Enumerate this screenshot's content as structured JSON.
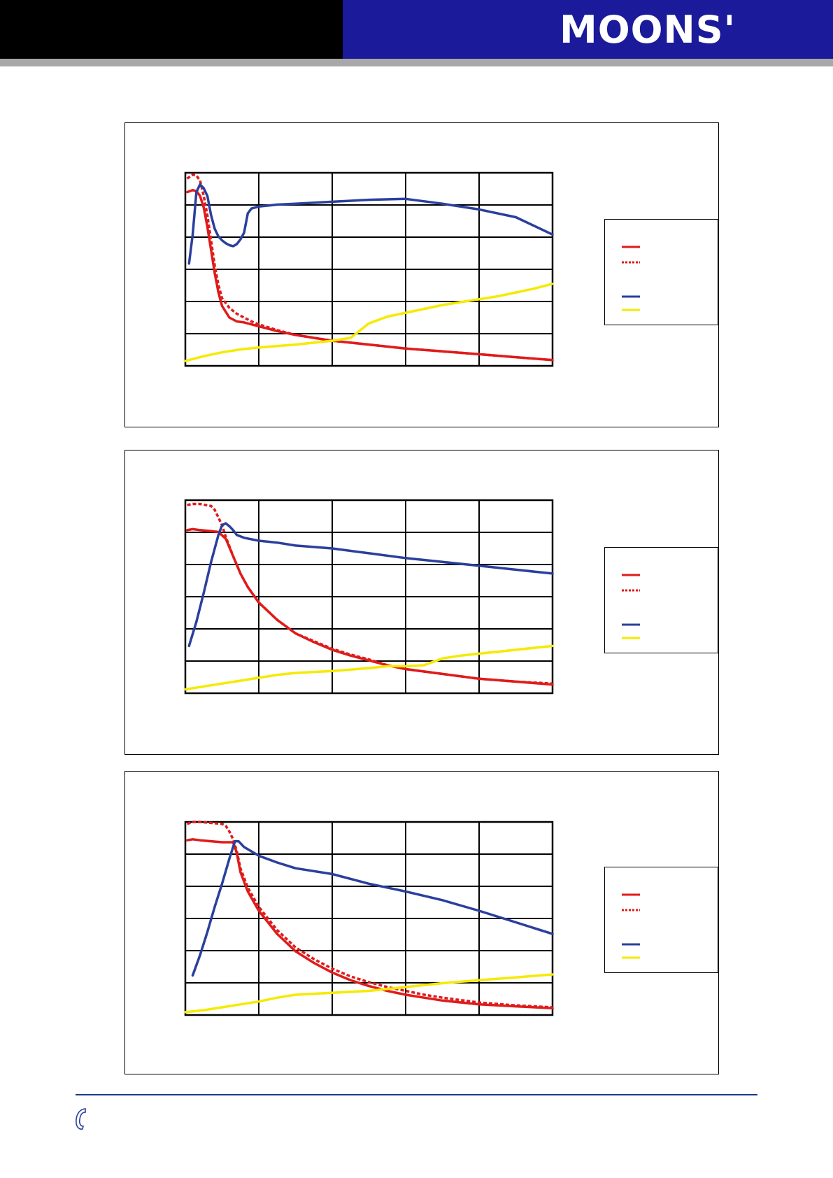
{
  "header": {
    "logo_text": "MOONS'",
    "colors": {
      "black_bar": "#000000",
      "blue_bar": "#1a1a9a",
      "gray_rule": "#a8a8a8"
    }
  },
  "legend_swatches": [
    {
      "color": "#e01b1b",
      "style": "solid"
    },
    {
      "color": "#e01b1b",
      "style": "dashed"
    },
    {
      "color": "#2b3f9c",
      "style": "solid"
    },
    {
      "color": "#f5ea00",
      "style": "solid"
    }
  ],
  "chart_data": [
    {
      "type": "line",
      "grid": true,
      "xlim": [
        0,
        100
      ],
      "ylim": [
        0,
        100
      ],
      "x_divisions": 5,
      "y_divisions": 6,
      "series": [
        {
          "color": "#e01b1b",
          "style": "solid",
          "x": [
            0.5,
            2,
            3,
            4,
            5,
            6,
            7,
            8,
            9,
            10,
            12,
            14,
            16,
            20,
            25,
            30,
            40,
            50,
            60,
            70,
            80,
            90,
            100
          ],
          "y": [
            90,
            91,
            90.5,
            88,
            82,
            72,
            60,
            48,
            38,
            31,
            25,
            23,
            22.5,
            20.5,
            18,
            16,
            13,
            11,
            9,
            7.5,
            6,
            4.5,
            3
          ]
        },
        {
          "color": "#e01b1b",
          "style": "dashed",
          "x": [
            0.5,
            2,
            3,
            4,
            5,
            6,
            7,
            8,
            9,
            10,
            12,
            14,
            16,
            18,
            20,
            25,
            30,
            40,
            50,
            60,
            70,
            80,
            90,
            100
          ],
          "y": [
            97,
            99,
            98.5,
            96,
            88,
            78,
            65,
            52,
            42,
            35,
            30,
            27,
            25,
            23,
            21.5,
            18.5,
            16,
            13,
            11,
            9,
            7.5,
            6,
            4.5,
            3
          ]
        },
        {
          "color": "#2b3f9c",
          "style": "solid",
          "x": [
            1,
            2,
            3,
            4,
            5,
            6,
            7,
            8,
            9,
            10,
            11,
            12,
            13,
            14,
            15,
            16,
            17,
            18,
            20,
            25,
            30,
            40,
            50,
            60,
            70,
            80,
            90,
            100
          ],
          "y": [
            53,
            68,
            90,
            94,
            92,
            88,
            78,
            71,
            67,
            65,
            63.5,
            62.5,
            62,
            63,
            65.5,
            69,
            79,
            81.5,
            82.5,
            83.5,
            84,
            85,
            86,
            86.5,
            84,
            81,
            77,
            68
          ]
        },
        {
          "color": "#f5ea00",
          "style": "solid",
          "x": [
            0,
            5,
            10,
            15,
            20,
            30,
            35,
            40,
            45,
            50,
            55,
            60,
            65,
            70,
            75,
            80,
            85,
            90,
            95,
            100
          ],
          "y": [
            2.5,
            5,
            7,
            8.5,
            9.5,
            11,
            12,
            13,
            14.5,
            22,
            25.5,
            27.5,
            29.5,
            31.5,
            33,
            34.5,
            36,
            38,
            40,
            42.5
          ]
        }
      ]
    },
    {
      "type": "line",
      "grid": true,
      "xlim": [
        0,
        100
      ],
      "ylim": [
        0,
        100
      ],
      "x_divisions": 5,
      "y_divisions": 6,
      "series": [
        {
          "color": "#e01b1b",
          "style": "solid",
          "x": [
            0.5,
            2,
            4,
            7,
            9,
            11,
            13,
            15,
            17,
            20,
            25,
            30,
            35,
            40,
            45,
            50,
            55,
            60,
            70,
            80,
            90,
            100
          ],
          "y": [
            84.5,
            85,
            84.5,
            84,
            83.5,
            80,
            71,
            62,
            55,
            47,
            38,
            31,
            26.5,
            22.5,
            19.5,
            17,
            14.5,
            12.5,
            10,
            7.5,
            6,
            4.5
          ]
        },
        {
          "color": "#e01b1b",
          "style": "dashed",
          "x": [
            0.5,
            2,
            4,
            7,
            8,
            9,
            10,
            11,
            13,
            15,
            17,
            20,
            25,
            30,
            35,
            40,
            45,
            50,
            55,
            60,
            70,
            80,
            90,
            100
          ],
          "y": [
            97.5,
            98,
            98,
            97,
            95,
            91,
            87,
            81,
            71,
            62,
            55,
            47,
            38,
            31,
            27,
            23,
            20,
            17.5,
            14.5,
            12.5,
            10,
            7.5,
            6,
            5
          ]
        },
        {
          "color": "#2b3f9c",
          "style": "solid",
          "x": [
            1,
            3,
            5,
            7,
            9,
            10,
            11,
            12,
            13,
            14,
            16,
            20,
            25,
            30,
            40,
            50,
            60,
            70,
            80,
            90,
            100
          ],
          "y": [
            24.5,
            37,
            52,
            68,
            82,
            87,
            88,
            86.5,
            84.5,
            82,
            80.5,
            79,
            78,
            76.5,
            75,
            72.5,
            70,
            68,
            66,
            64,
            62
          ]
        },
        {
          "color": "#f5ea00",
          "style": "solid",
          "x": [
            0,
            5,
            10,
            15,
            20,
            25,
            30,
            40,
            50,
            55,
            60,
            65,
            70,
            75,
            80,
            85,
            90,
            95,
            100
          ],
          "y": [
            2,
            3.5,
            5,
            6.5,
            8,
            9.5,
            10.5,
            11.5,
            13,
            14,
            14,
            14.5,
            18,
            19.5,
            20.5,
            21.5,
            22.5,
            23.5,
            24.5
          ]
        }
      ]
    },
    {
      "type": "line",
      "grid": true,
      "xlim": [
        0,
        100
      ],
      "ylim": [
        0,
        100
      ],
      "x_divisions": 5,
      "y_divisions": 6,
      "series": [
        {
          "color": "#e01b1b",
          "style": "solid",
          "x": [
            0.5,
            2,
            4,
            7,
            10,
            13,
            14,
            15,
            17,
            20,
            25,
            30,
            35,
            40,
            45,
            50,
            55,
            60,
            65,
            70,
            80,
            90,
            100
          ],
          "y": [
            90.5,
            91,
            90.5,
            90,
            89.5,
            89.5,
            84,
            74,
            64,
            54,
            42,
            33,
            27,
            22,
            18,
            15,
            12.5,
            10.5,
            9,
            7.5,
            5.5,
            4.5,
            3.5
          ]
        },
        {
          "color": "#e01b1b",
          "style": "dashed",
          "x": [
            0.5,
            2,
            4,
            7,
            10,
            11,
            12,
            13,
            14,
            15,
            17,
            20,
            25,
            30,
            35,
            40,
            45,
            50,
            55,
            60,
            65,
            70,
            80,
            90,
            100
          ],
          "y": [
            99,
            100,
            100,
            99.5,
            99,
            98,
            95,
            91,
            85,
            76,
            66,
            56,
            44,
            35,
            29,
            24,
            20,
            17,
            14.5,
            12.5,
            10.5,
            9,
            6.5,
            5,
            4
          ]
        },
        {
          "color": "#2b3f9c",
          "style": "solid",
          "x": [
            2,
            4,
            6,
            8,
            10,
            12,
            13.5,
            14.5,
            16,
            20,
            25,
            30,
            40,
            50,
            60,
            70,
            80,
            90,
            100
          ],
          "y": [
            20.5,
            31,
            43,
            56,
            68,
            81,
            90,
            90,
            87,
            82.5,
            79,
            76,
            73,
            68,
            64,
            59.5,
            54,
            48,
            42
          ]
        },
        {
          "color": "#f5ea00",
          "style": "solid",
          "x": [
            0,
            5,
            10,
            15,
            20,
            25,
            30,
            40,
            50,
            55,
            60,
            65,
            70,
            80,
            90,
            100
          ],
          "y": [
            1.5,
            2.5,
            4,
            5.5,
            7,
            9,
            10.5,
            11.5,
            12.5,
            13.5,
            14.5,
            15.5,
            16.5,
            18,
            19.5,
            21
          ]
        }
      ]
    }
  ]
}
